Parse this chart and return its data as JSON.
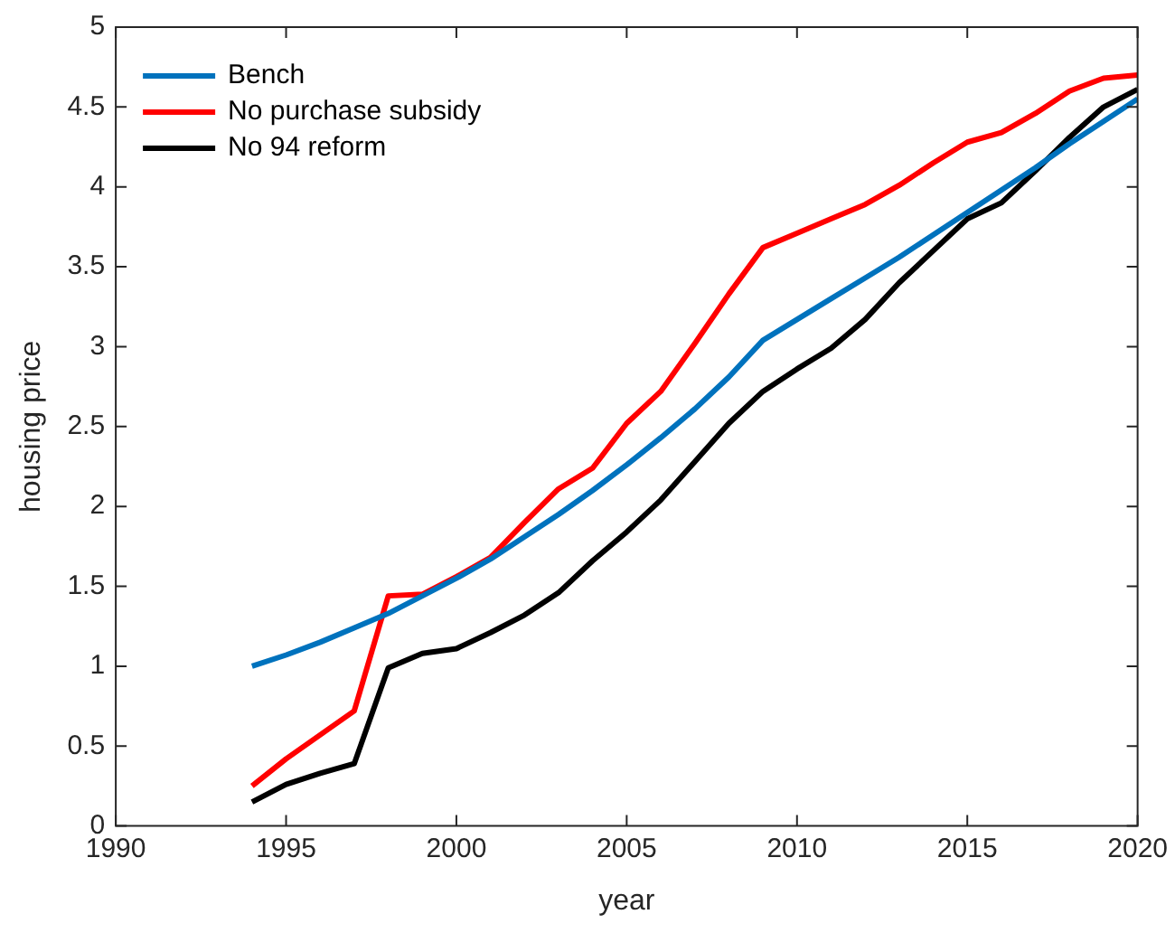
{
  "chart_data": {
    "type": "line",
    "xlabel": "year",
    "ylabel": "housing price",
    "x": [
      1994,
      1995,
      1996,
      1997,
      1998,
      1999,
      2000,
      2001,
      2002,
      2003,
      2004,
      2005,
      2006,
      2007,
      2008,
      2009,
      2010,
      2011,
      2012,
      2013,
      2014,
      2015,
      2016,
      2017,
      2018,
      2019,
      2020
    ],
    "series": [
      {
        "name": "Bench",
        "color": "#0072bd",
        "values": [
          1.0,
          1.07,
          1.15,
          1.24,
          1.33,
          1.44,
          1.55,
          1.67,
          1.81,
          1.95,
          2.1,
          2.26,
          2.43,
          2.61,
          2.81,
          3.04,
          3.17,
          3.3,
          3.43,
          3.56,
          3.7,
          3.84,
          3.98,
          4.12,
          4.27,
          4.41,
          4.55
        ]
      },
      {
        "name": "No purchase subsidy",
        "color": "#ff0000",
        "values": [
          0.25,
          0.42,
          0.57,
          0.72,
          1.44,
          1.45,
          1.56,
          1.68,
          1.9,
          2.11,
          2.24,
          2.52,
          2.72,
          3.02,
          3.33,
          3.62,
          3.71,
          3.8,
          3.89,
          4.01,
          4.15,
          4.28,
          4.34,
          4.46,
          4.6,
          4.68,
          4.7
        ]
      },
      {
        "name": "No 94 reform",
        "color": "#000000",
        "values": [
          0.15,
          0.26,
          0.33,
          0.39,
          0.99,
          1.08,
          1.11,
          1.21,
          1.32,
          1.46,
          1.66,
          1.84,
          2.04,
          2.28,
          2.52,
          2.72,
          2.86,
          2.99,
          3.17,
          3.4,
          3.6,
          3.8,
          3.9,
          4.1,
          4.31,
          4.5,
          4.61
        ]
      }
    ],
    "xlim": [
      1990,
      2020
    ],
    "xticks": [
      1990,
      1995,
      2000,
      2005,
      2010,
      2015,
      2020
    ],
    "ylim": [
      0,
      5
    ],
    "yticks": [
      0,
      0.5,
      1,
      1.5,
      2,
      2.5,
      3,
      3.5,
      4,
      4.5,
      5
    ],
    "grid": false,
    "legend": "top left",
    "marker": "none",
    "line_style": "solid"
  }
}
